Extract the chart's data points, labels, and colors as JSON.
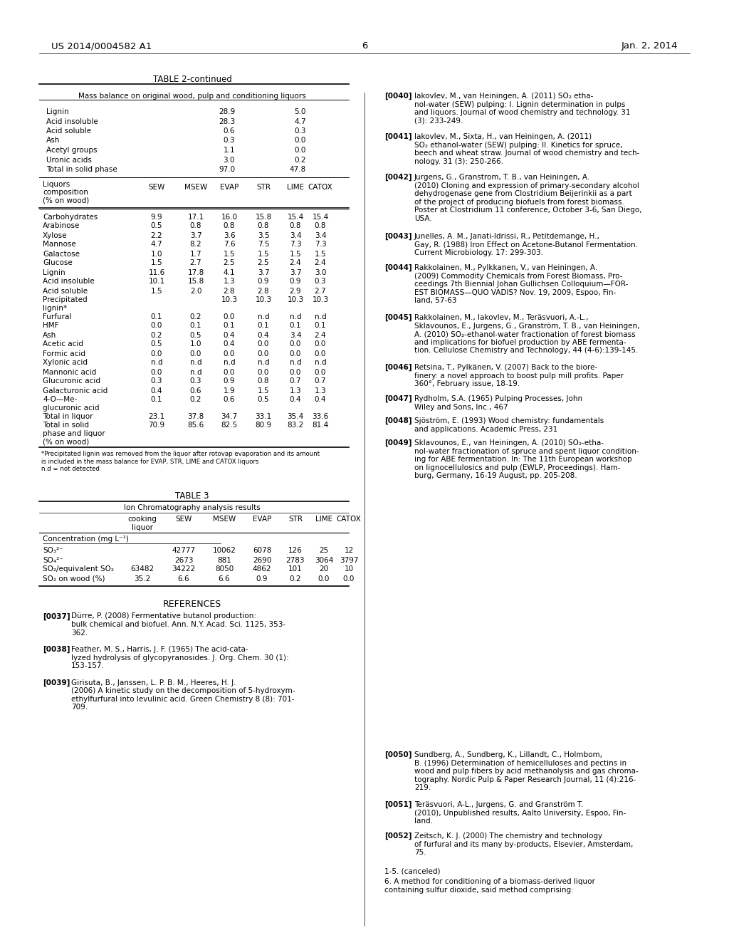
{
  "header_left": "US 2014/0004582 A1",
  "header_right": "Jan. 2, 2014",
  "page_number": "6"
}
